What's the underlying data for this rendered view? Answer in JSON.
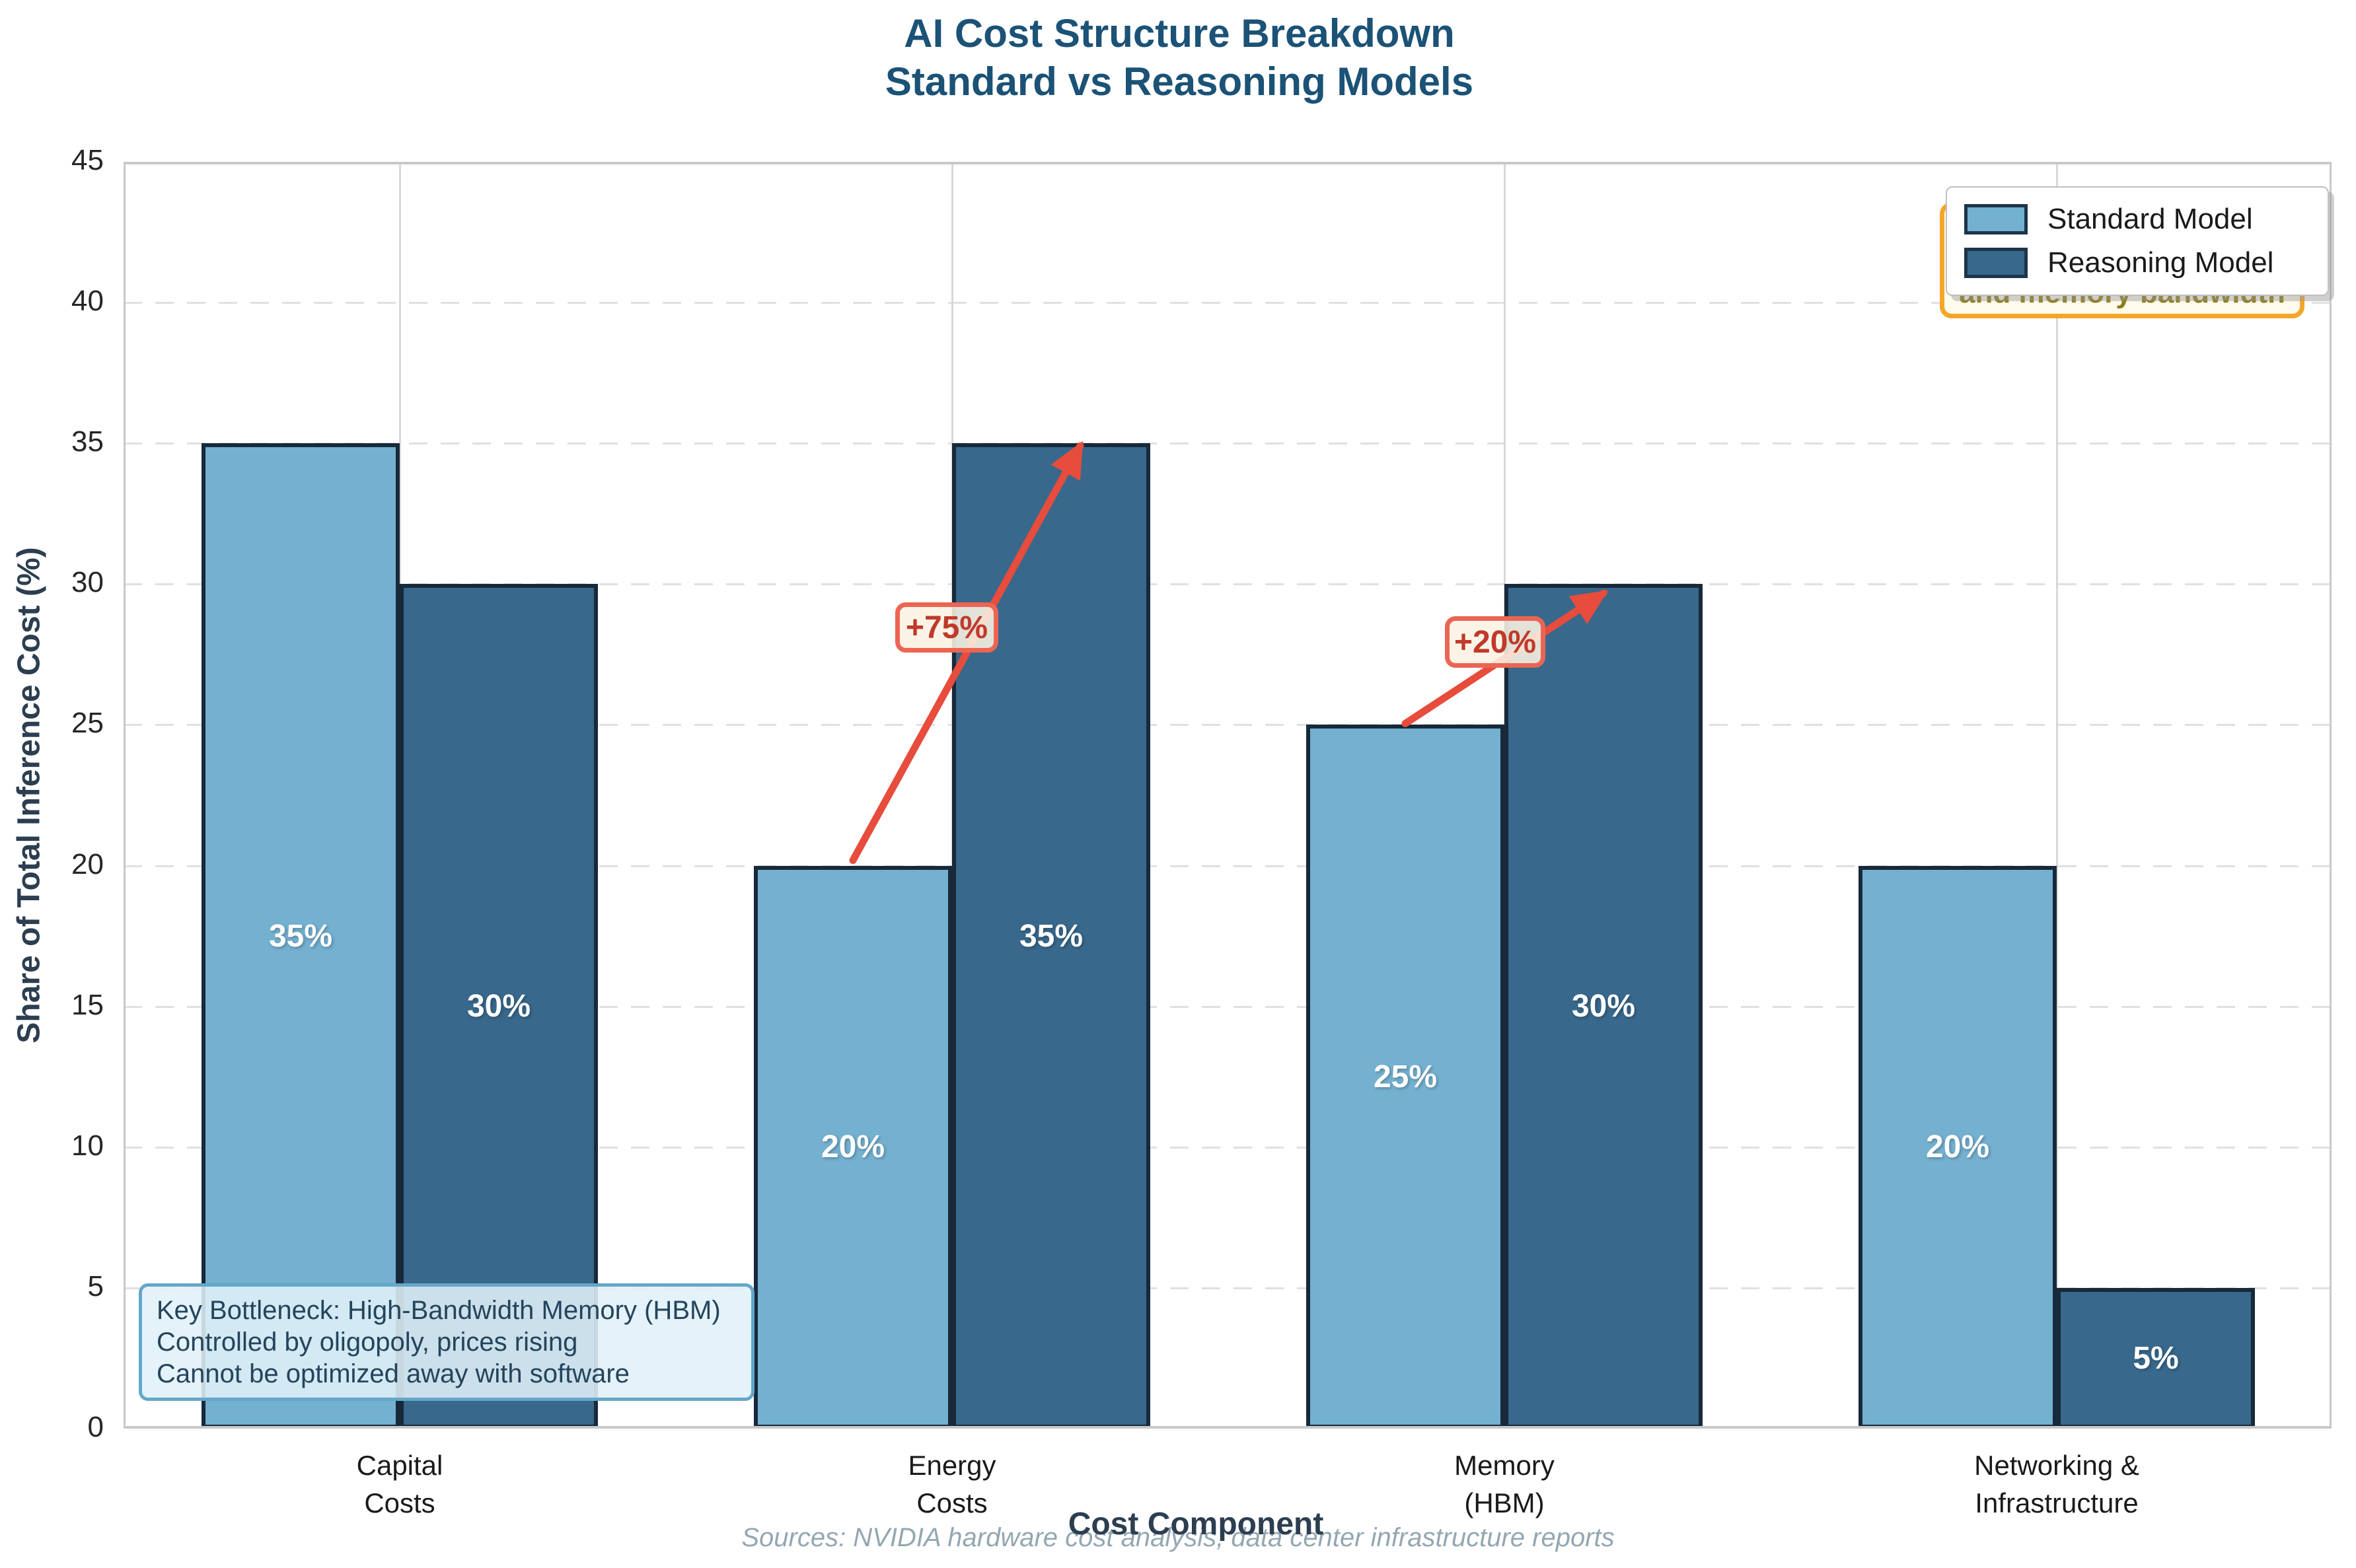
{
  "title": {
    "line1": "AI Cost Structure Breakdown",
    "line2": "Standard vs Reasoning Models"
  },
  "axes": {
    "xlabel": "Cost Component",
    "ylabel": "Share of Total Inference Cost (%)"
  },
  "footer": "Sources: NVIDIA hardware cost analysis, data center infrastructure reports",
  "note_box": {
    "lines": [
      "Key Bottleneck: High-Bandwidth Memory (HBM)",
      "Controlled by oligopoly, prices rising",
      "Cannot be optimized away with software"
    ]
  },
  "callout_partial": {
    "visible_text": "and memory bandwidth"
  },
  "colors": {
    "standard_bar": "#74b0d0",
    "reasoning_bar": "#38688c",
    "bar_edge": "#17293a",
    "arrow_red": "#e74c3c",
    "annotation_text": "#c0392b",
    "annotation_border": "#ec6553",
    "callout_border": "#f4a62a",
    "title_text": "#1b5276",
    "axis_label_text": "#2c3e50",
    "footer_text": "#94a7b2",
    "note_border": "#64a7c9"
  },
  "chart_data": {
    "type": "bar",
    "title": "AI Cost Structure Breakdown Standard vs Reasoning Models",
    "xlabel": "Cost Component",
    "ylabel": "Share of Total Inference Cost (%)",
    "categories": [
      [
        "Capital",
        "Costs"
      ],
      [
        "Energy",
        "Costs"
      ],
      [
        "Memory",
        "(HBM)"
      ],
      [
        "Networking &",
        "Infrastructure"
      ]
    ],
    "series": [
      {
        "name": "Standard Model",
        "color": "#74b0d0",
        "values": [
          35,
          20,
          25,
          20
        ]
      },
      {
        "name": "Reasoning Model",
        "color": "#38688c",
        "values": [
          30,
          35,
          30,
          5
        ]
      }
    ],
    "value_label_suffix": "%",
    "ylim": [
      0,
      45
    ],
    "yticks": [
      0,
      5,
      10,
      15,
      20,
      25,
      30,
      35,
      40,
      45
    ],
    "grid": {
      "horizontal": "dashed",
      "vertical": "solid at category centers"
    },
    "legend_position": "upper-right",
    "annotations": [
      {
        "text": "+75%",
        "category_index": 1,
        "from_value": 20,
        "to_value": 35
      },
      {
        "text": "+20%",
        "category_index": 2,
        "from_value": 25,
        "to_value": 30
      }
    ]
  }
}
